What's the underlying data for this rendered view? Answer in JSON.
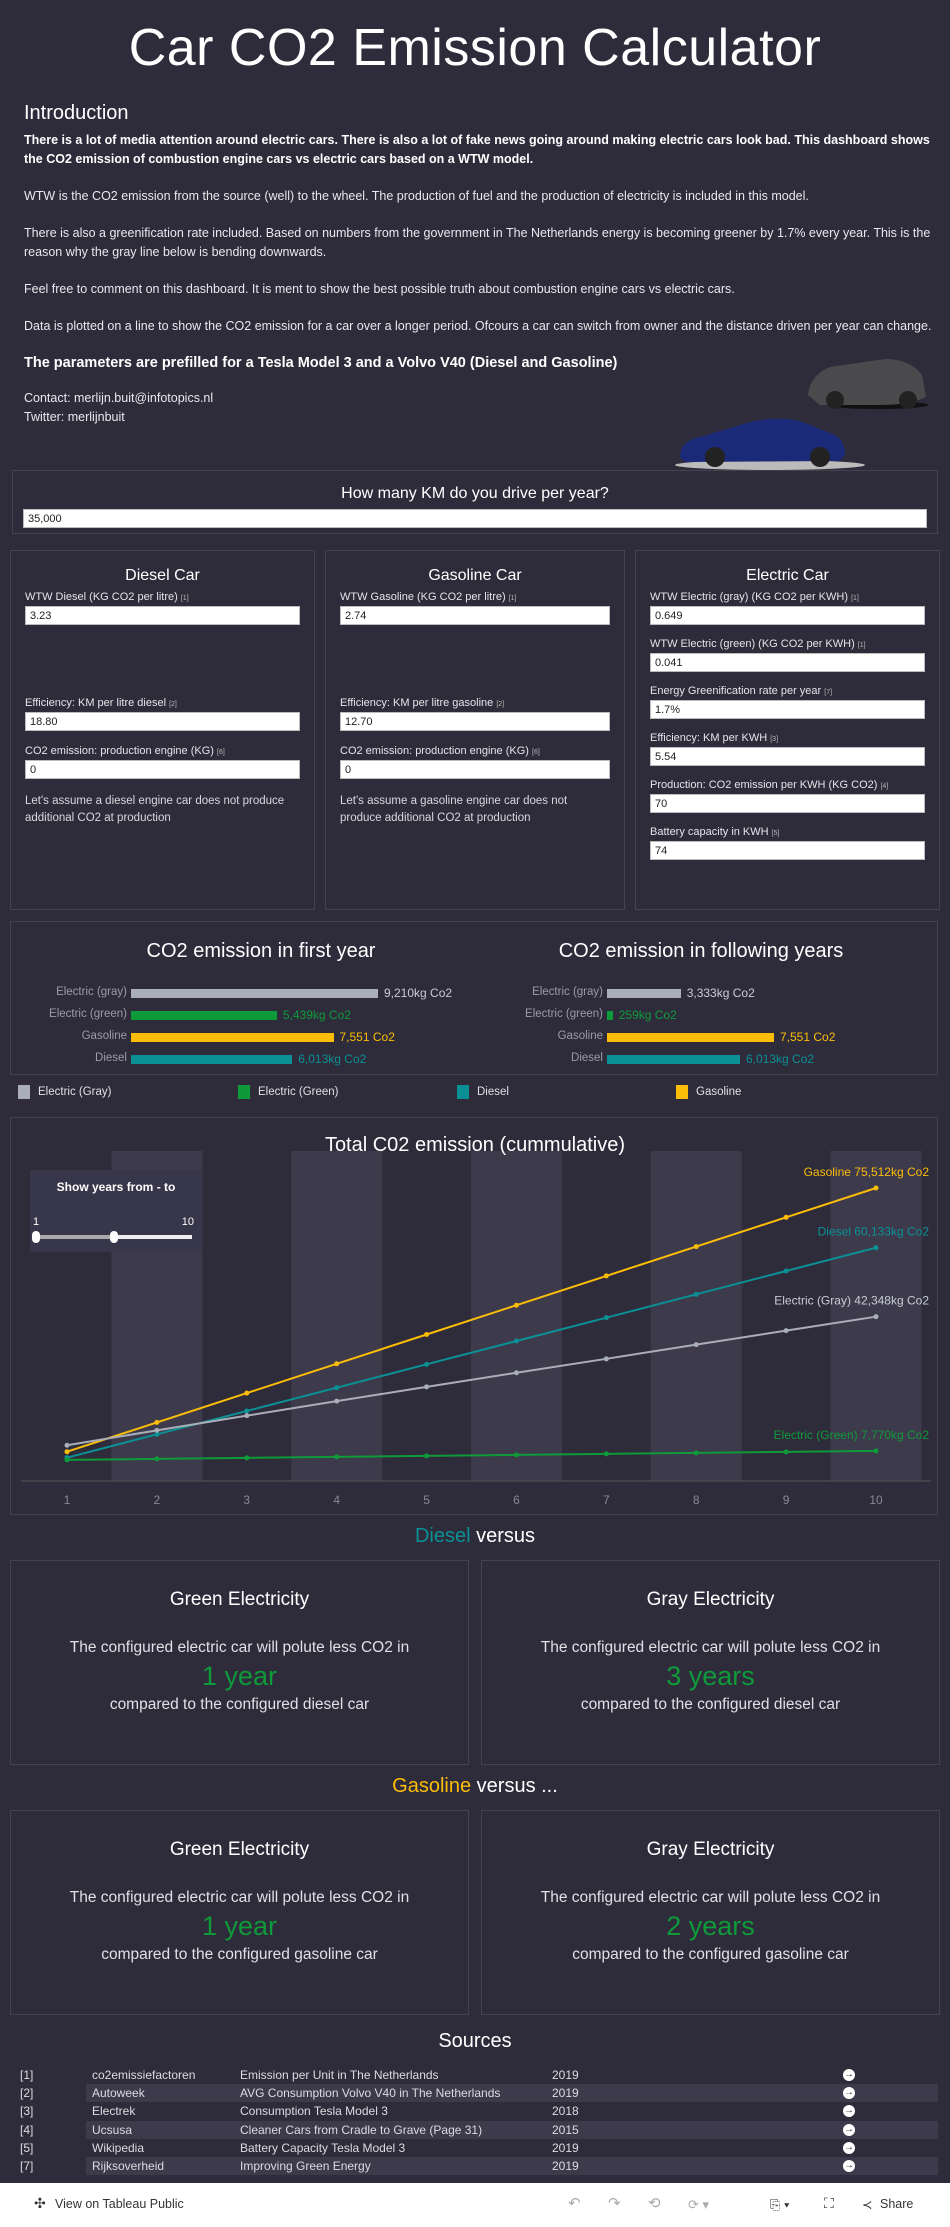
{
  "title": "Car CO2 Emission Calculator",
  "intro": {
    "heading": "Introduction",
    "p1": "There is a lot of media attention around electric cars. There is also a lot of fake news going around making electric cars look bad. This dashboard shows the CO2 emission of combustion engine cars vs electric cars based on a WTW model.",
    "p2": "WTW is the CO2 emission from the source (well) to the wheel. The production of fuel and the production of electricity is included in this model.",
    "p3": "There is also a greenification rate included. Based on numbers from the government in The Netherlands energy is becoming greener by 1.7% every year. This is the reason why the gray line below is bending downwards.",
    "p4": "Feel free to comment on this dashboard. It is ment to show the best possible truth about combustion engine cars vs electric cars.",
    "p5": "Data is plotted on a line to show the CO2 emission for a car over a longer period. Ofcours a car can switch from owner and the distance driven per year can change.",
    "highlight": "The parameters are prefilled for a Tesla Model 3 and a Volvo V40 (Diesel and Gasoline)",
    "contact": "Contact: merlijn.buit@infotopics.nl",
    "twitter": "Twitter: merlijnbuit"
  },
  "km": {
    "label": "How many KM do you drive per year?",
    "value": "35,000"
  },
  "diesel": {
    "title": "Diesel Car",
    "fields": [
      {
        "label": "WTW Diesel (KG CO2 per litre)",
        "ref": "[1]",
        "value": "3.23"
      },
      {
        "label": "Efficiency: KM per litre diesel",
        "ref": "[2]",
        "value": "18.80"
      },
      {
        "label": "CO2 emission: production engine (KG)",
        "ref": "[6]",
        "value": "0"
      }
    ],
    "note": "Let's assume a diesel engine car does not produce additional CO2 at production"
  },
  "gasoline": {
    "title": "Gasoline Car",
    "fields": [
      {
        "label": "WTW Gasoline (KG CO2 per litre)",
        "ref": "[1]",
        "value": "2.74"
      },
      {
        "label": "Efficiency: KM per litre gasoline",
        "ref": "[2]",
        "value": "12.70"
      },
      {
        "label": "CO2 emission: production engine (KG)",
        "ref": "[6]",
        "value": "0"
      }
    ],
    "note": "Let's assume a gasoline engine car does not produce additional CO2 at production"
  },
  "electric": {
    "title": "Electric Car",
    "fields": [
      {
        "label": "WTW Electric (gray) (KG CO2 per KWH)",
        "ref": "[1]",
        "value": "0.649"
      },
      {
        "label": "WTW Electric (green) (KG CO2 per KWH)",
        "ref": "[1]",
        "value": "0.041"
      },
      {
        "label": "Energy Greenification rate per year",
        "ref": "[7]",
        "value": "1.7%"
      },
      {
        "label": "Efficiency: KM per KWH",
        "ref": "[3]",
        "value": "5.54"
      },
      {
        "label": "Production: CO2 emission per KWH (KG CO2)",
        "ref": "[4]",
        "value": "70"
      },
      {
        "label": "Battery capacity in KWH",
        "ref": "[5]",
        "value": "74"
      }
    ]
  },
  "colors": {
    "gray": "#a9aeb8",
    "green": "#0f9a3a",
    "gasoline": "#fbbd08",
    "diesel": "#0a9196"
  },
  "chart_data": [
    {
      "type": "bar",
      "title": "CO2 emission in first year",
      "categories": [
        "Electric (gray)",
        "Electric (green)",
        "Gasoline",
        "Diesel"
      ],
      "values": [
        9210,
        5439,
        7551,
        6013
      ],
      "labels": [
        "9,210kg Co2",
        "5,439kg Co2",
        "7,551 Co2",
        "6,013kg Co2"
      ]
    },
    {
      "type": "bar",
      "title": "CO2 emission in following years",
      "categories": [
        "Electric (gray)",
        "Electric (green)",
        "Gasoline",
        "Diesel"
      ],
      "values": [
        3333,
        259,
        7551,
        6013
      ],
      "labels": [
        "3,333kg Co2",
        "259kg Co2",
        "7,551 Co2",
        "6,013kg Co2"
      ]
    },
    {
      "type": "line",
      "title": "Total C02 emission (cummulative)",
      "x": [
        1,
        2,
        3,
        4,
        5,
        6,
        7,
        8,
        9,
        10
      ],
      "ylim": [
        0,
        80000
      ],
      "series": [
        {
          "name": "Gasoline",
          "color": "gasoline",
          "values": [
            7551,
            15102,
            22654,
            30205,
            37756,
            45307,
            52858,
            60410,
            67961,
            75512
          ],
          "end_label": "Gasoline 75,512kg Co2"
        },
        {
          "name": "Diesel",
          "color": "diesel",
          "values": [
            6013,
            12027,
            18040,
            24053,
            30067,
            36080,
            42093,
            48106,
            54120,
            60133
          ],
          "end_label": "Diesel 60,133kg Co2"
        },
        {
          "name": "Electric (Gray)",
          "color": "gray",
          "values": [
            9210,
            13050,
            16840,
            20580,
            24270,
            27900,
            31490,
            35150,
            38750,
            42348
          ],
          "end_label": "Electric (Gray) 42,348kg Co2"
        },
        {
          "name": "Electric (Green)",
          "color": "green",
          "values": [
            5439,
            5698,
            5957,
            6216,
            6475,
            6734,
            6993,
            7252,
            7511,
            7770
          ],
          "end_label": "Electric (Green) 7,770kg Co2"
        }
      ]
    }
  ],
  "legend": [
    "Electric (Gray)",
    "Electric (Green)",
    "Diesel",
    "Gasoline"
  ],
  "slider": {
    "label": "Show years from - to",
    "min": "1",
    "max": "10",
    "from": 1,
    "to": 10
  },
  "diesel_vs": {
    "heading_colored": "Diesel",
    "heading_rest": " versus",
    "cards": [
      {
        "title": "Green Electricity",
        "line1": "The configured electric car will polute less CO2 in",
        "big": "1 year",
        "line2": "compared to the configured diesel car"
      },
      {
        "title": "Gray Electricity",
        "line1": "The configured electric car will polute less CO2 in",
        "big": "3 years",
        "line2": "compared to the configured diesel car"
      }
    ]
  },
  "gasoline_vs": {
    "heading_colored": "Gasoline",
    "heading_rest": " versus ...",
    "cards": [
      {
        "title": "Green Electricity",
        "line1": "The configured electric car will polute less CO2 in",
        "big": "1 year",
        "line2": "compared to the configured gasoline car"
      },
      {
        "title": "Gray Electricity",
        "line1": "The configured electric car will polute less CO2 in",
        "big": "2 years",
        "line2": "compared to the configured gasoline car"
      }
    ]
  },
  "sources": {
    "title": "Sources",
    "rows": [
      {
        "ref": "[1]",
        "site": "co2emissiefactoren",
        "desc": "Emission per Unit in The Netherlands",
        "year": "2019"
      },
      {
        "ref": "[2]",
        "site": "Autoweek",
        "desc": "AVG Consumption Volvo V40 in The Netherlands",
        "year": "2019"
      },
      {
        "ref": "[3]",
        "site": "Electrek",
        "desc": "Consumption Tesla Model 3",
        "year": "2018"
      },
      {
        "ref": "[4]",
        "site": "Ucsusa",
        "desc": "Cleaner Cars from Cradle to Grave (Page 31)",
        "year": "2015"
      },
      {
        "ref": "[5]",
        "site": "Wikipedia",
        "desc": "Battery Capacity Tesla Model 3",
        "year": "2019"
      },
      {
        "ref": "[7]",
        "site": "Rijksoverheid",
        "desc": "Improving Green Energy",
        "year": "2019"
      }
    ]
  },
  "footer": {
    "view": "View on Tableau Public",
    "share": "Share"
  }
}
